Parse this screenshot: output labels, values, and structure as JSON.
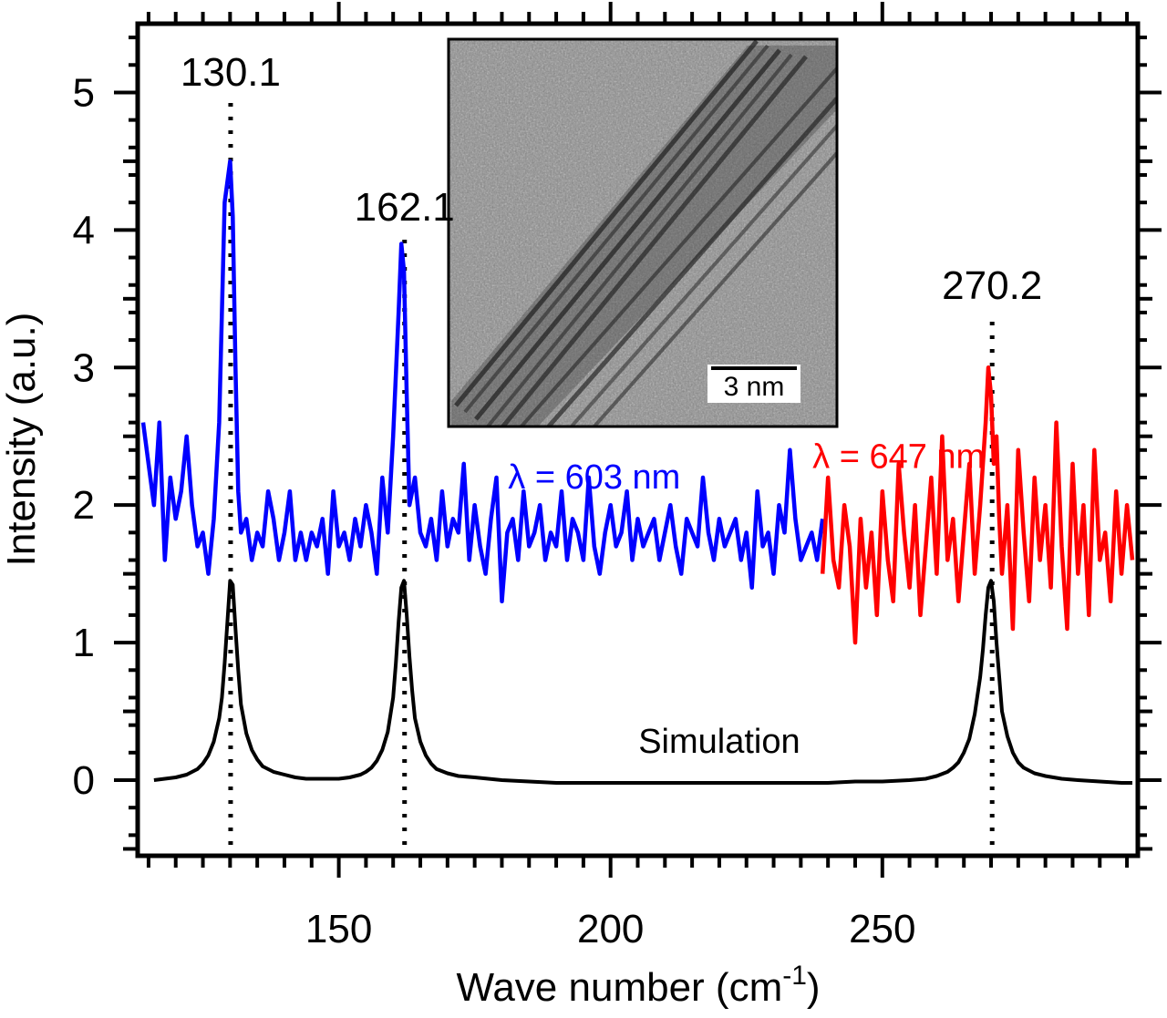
{
  "chart_data": {
    "type": "line",
    "xlabel": "Wave number (cm",
    "xlabel_sup": "-1",
    "xlabel_close": ")",
    "ylabel": "Intensity (a.u.)",
    "xlim": [
      113,
      297
    ],
    "ylim": [
      -0.55,
      5.5
    ],
    "xticks": [
      150,
      200,
      250
    ],
    "xtick_labels": [
      "150",
      "200",
      "250"
    ],
    "yticks": [
      0,
      1,
      2,
      3,
      4,
      5
    ],
    "ytick_labels": [
      "0",
      "1",
      "2",
      "3",
      "4",
      "5"
    ],
    "grid": false,
    "peaks": [
      {
        "x": 130.1,
        "label": "130.1"
      },
      {
        "x": 162.1,
        "label": "162.1"
      },
      {
        "x": 270.2,
        "label": "270.2"
      }
    ],
    "series": [
      {
        "name": "λ = 603 nm",
        "color": "#0000ff",
        "x": [
          114,
          115,
          116,
          117,
          118,
          119,
          120,
          121,
          122,
          123,
          124,
          125,
          126,
          127,
          128,
          129,
          130,
          130.5,
          131,
          131.5,
          132,
          133,
          134,
          135,
          136,
          137,
          138,
          139,
          140,
          141,
          142,
          143,
          144,
          145,
          146,
          147,
          148,
          149,
          150,
          151,
          152,
          153,
          154,
          155,
          156,
          157,
          158,
          159,
          160,
          161,
          161.5,
          162,
          162.5,
          163,
          164,
          165,
          166,
          167,
          168,
          169,
          170,
          171,
          172,
          173,
          174,
          175,
          176,
          177,
          178,
          179,
          180,
          181,
          182,
          183,
          184,
          185,
          186,
          187,
          188,
          189,
          190,
          191,
          192,
          193,
          194,
          195,
          196,
          197,
          198,
          199,
          200,
          201,
          202,
          203,
          204,
          205,
          206,
          207,
          208,
          209,
          210,
          211,
          212,
          213,
          214,
          215,
          216,
          217,
          218,
          219,
          220,
          221,
          222,
          223,
          224,
          225,
          226,
          227,
          228,
          229,
          230,
          231,
          232,
          233,
          234,
          235,
          236,
          237,
          238,
          239
        ],
        "y": [
          2.6,
          2.3,
          2.0,
          2.6,
          1.6,
          2.2,
          1.9,
          2.1,
          2.5,
          2.0,
          1.7,
          1.8,
          1.5,
          1.9,
          2.6,
          4.2,
          4.5,
          4.1,
          3.0,
          2.1,
          1.8,
          1.9,
          1.6,
          1.8,
          1.7,
          2.1,
          1.9,
          1.6,
          1.8,
          2.1,
          1.6,
          1.8,
          1.6,
          1.8,
          1.7,
          1.9,
          1.5,
          2.1,
          1.7,
          1.8,
          1.6,
          1.9,
          1.7,
          2.0,
          1.8,
          1.5,
          2.2,
          1.8,
          2.5,
          3.4,
          3.9,
          3.7,
          2.8,
          2.0,
          2.2,
          1.8,
          1.7,
          1.9,
          1.6,
          2.1,
          1.7,
          1.9,
          1.8,
          2.3,
          1.6,
          2.0,
          1.7,
          1.5,
          1.9,
          2.2,
          1.3,
          1.8,
          1.9,
          1.6,
          2.1,
          1.7,
          1.8,
          2.0,
          1.6,
          1.8,
          1.7,
          2.1,
          1.6,
          1.9,
          1.8,
          1.6,
          2.2,
          1.7,
          1.5,
          1.8,
          2.0,
          1.7,
          1.8,
          2.1,
          1.6,
          1.9,
          1.7,
          1.8,
          1.9,
          1.6,
          1.8,
          2.0,
          1.7,
          1.5,
          1.9,
          1.8,
          1.7,
          2.2,
          1.8,
          1.6,
          1.9,
          1.7,
          1.8,
          1.9,
          1.6,
          1.8,
          1.4,
          2.1,
          1.7,
          1.8,
          1.5,
          2.0,
          1.8,
          2.4,
          1.9,
          1.6,
          1.7,
          1.8,
          1.6,
          1.9
        ]
      },
      {
        "name": "λ = 647 nm",
        "color": "#ff0000",
        "x": [
          239,
          240,
          241,
          242,
          243,
          244,
          245,
          246,
          247,
          248,
          249,
          250,
          251,
          252,
          253,
          254,
          255,
          256,
          257,
          258,
          259,
          260,
          261,
          262,
          263,
          264,
          265,
          266,
          267,
          268,
          269,
          269.5,
          270,
          270.5,
          271,
          271.5,
          272,
          273,
          274,
          275,
          276,
          277,
          278,
          279,
          280,
          281,
          282,
          283,
          284,
          285,
          286,
          287,
          288,
          289,
          290,
          291,
          292,
          293,
          294,
          295,
          296
        ],
        "y": [
          1.5,
          2.2,
          1.6,
          1.4,
          2.0,
          1.7,
          1.0,
          1.9,
          1.4,
          1.8,
          1.2,
          2.1,
          1.6,
          1.3,
          2.3,
          1.8,
          1.4,
          2.0,
          1.2,
          1.7,
          2.2,
          1.5,
          2.5,
          1.6,
          1.9,
          1.3,
          1.8,
          2.3,
          1.5,
          2.0,
          2.6,
          3.0,
          2.8,
          2.3,
          2.5,
          1.9,
          1.5,
          2.0,
          1.1,
          2.4,
          1.8,
          1.3,
          2.2,
          1.6,
          2.0,
          1.4,
          2.6,
          1.7,
          1.1,
          2.3,
          1.5,
          2.0,
          1.2,
          2.4,
          1.6,
          1.8,
          1.3,
          2.1,
          1.5,
          2.0,
          1.6
        ]
      },
      {
        "name": "Simulation",
        "color": "#000000",
        "x": [
          116,
          118,
          120,
          122,
          124,
          125,
          126,
          127,
          128,
          128.5,
          129,
          129.5,
          130,
          130.5,
          131,
          131.5,
          132,
          133,
          134,
          135,
          136,
          138,
          140,
          142,
          144,
          146,
          148,
          150,
          152,
          154,
          155,
          156,
          157,
          158,
          159,
          160,
          160.5,
          161,
          161.5,
          162,
          162.5,
          163,
          163.5,
          164,
          165,
          166,
          167,
          168,
          170,
          172,
          175,
          180,
          185,
          190,
          200,
          210,
          220,
          230,
          240,
          245,
          250,
          255,
          258,
          260,
          262,
          263,
          264,
          265,
          266,
          267,
          268,
          268.5,
          269,
          269.5,
          270,
          270.5,
          271,
          271.5,
          272,
          273,
          274,
          275,
          276,
          278,
          280,
          283,
          286,
          290,
          294,
          296
        ],
        "y": [
          0,
          0.01,
          0.02,
          0.04,
          0.08,
          0.12,
          0.18,
          0.28,
          0.45,
          0.6,
          0.85,
          1.15,
          1.45,
          1.42,
          1.1,
          0.8,
          0.55,
          0.34,
          0.22,
          0.15,
          0.1,
          0.06,
          0.04,
          0.02,
          0.01,
          0.01,
          0.01,
          0.01,
          0.02,
          0.04,
          0.06,
          0.09,
          0.14,
          0.22,
          0.35,
          0.6,
          0.85,
          1.15,
          1.4,
          1.45,
          1.2,
          0.9,
          0.65,
          0.45,
          0.28,
          0.18,
          0.12,
          0.08,
          0.05,
          0.03,
          0.02,
          0,
          -0.01,
          -0.02,
          -0.02,
          -0.02,
          -0.02,
          -0.02,
          -0.02,
          -0.01,
          -0.01,
          0,
          0.01,
          0.03,
          0.06,
          0.09,
          0.13,
          0.2,
          0.3,
          0.48,
          0.75,
          0.95,
          1.2,
          1.4,
          1.45,
          1.3,
          1.0,
          0.75,
          0.5,
          0.32,
          0.2,
          0.13,
          0.09,
          0.05,
          0.03,
          0.01,
          0,
          -0.01,
          -0.02,
          -0.02
        ]
      }
    ],
    "curve_labels": [
      {
        "text": "λ = 603 nm",
        "color": "#0000ff"
      },
      {
        "text": "λ = 647 nm",
        "color": "#ff0000"
      },
      {
        "text": "Simulation",
        "color": "#000000"
      }
    ],
    "inset": {
      "kind": "TEM micrograph",
      "scale_bar_label": "3 nm"
    }
  }
}
